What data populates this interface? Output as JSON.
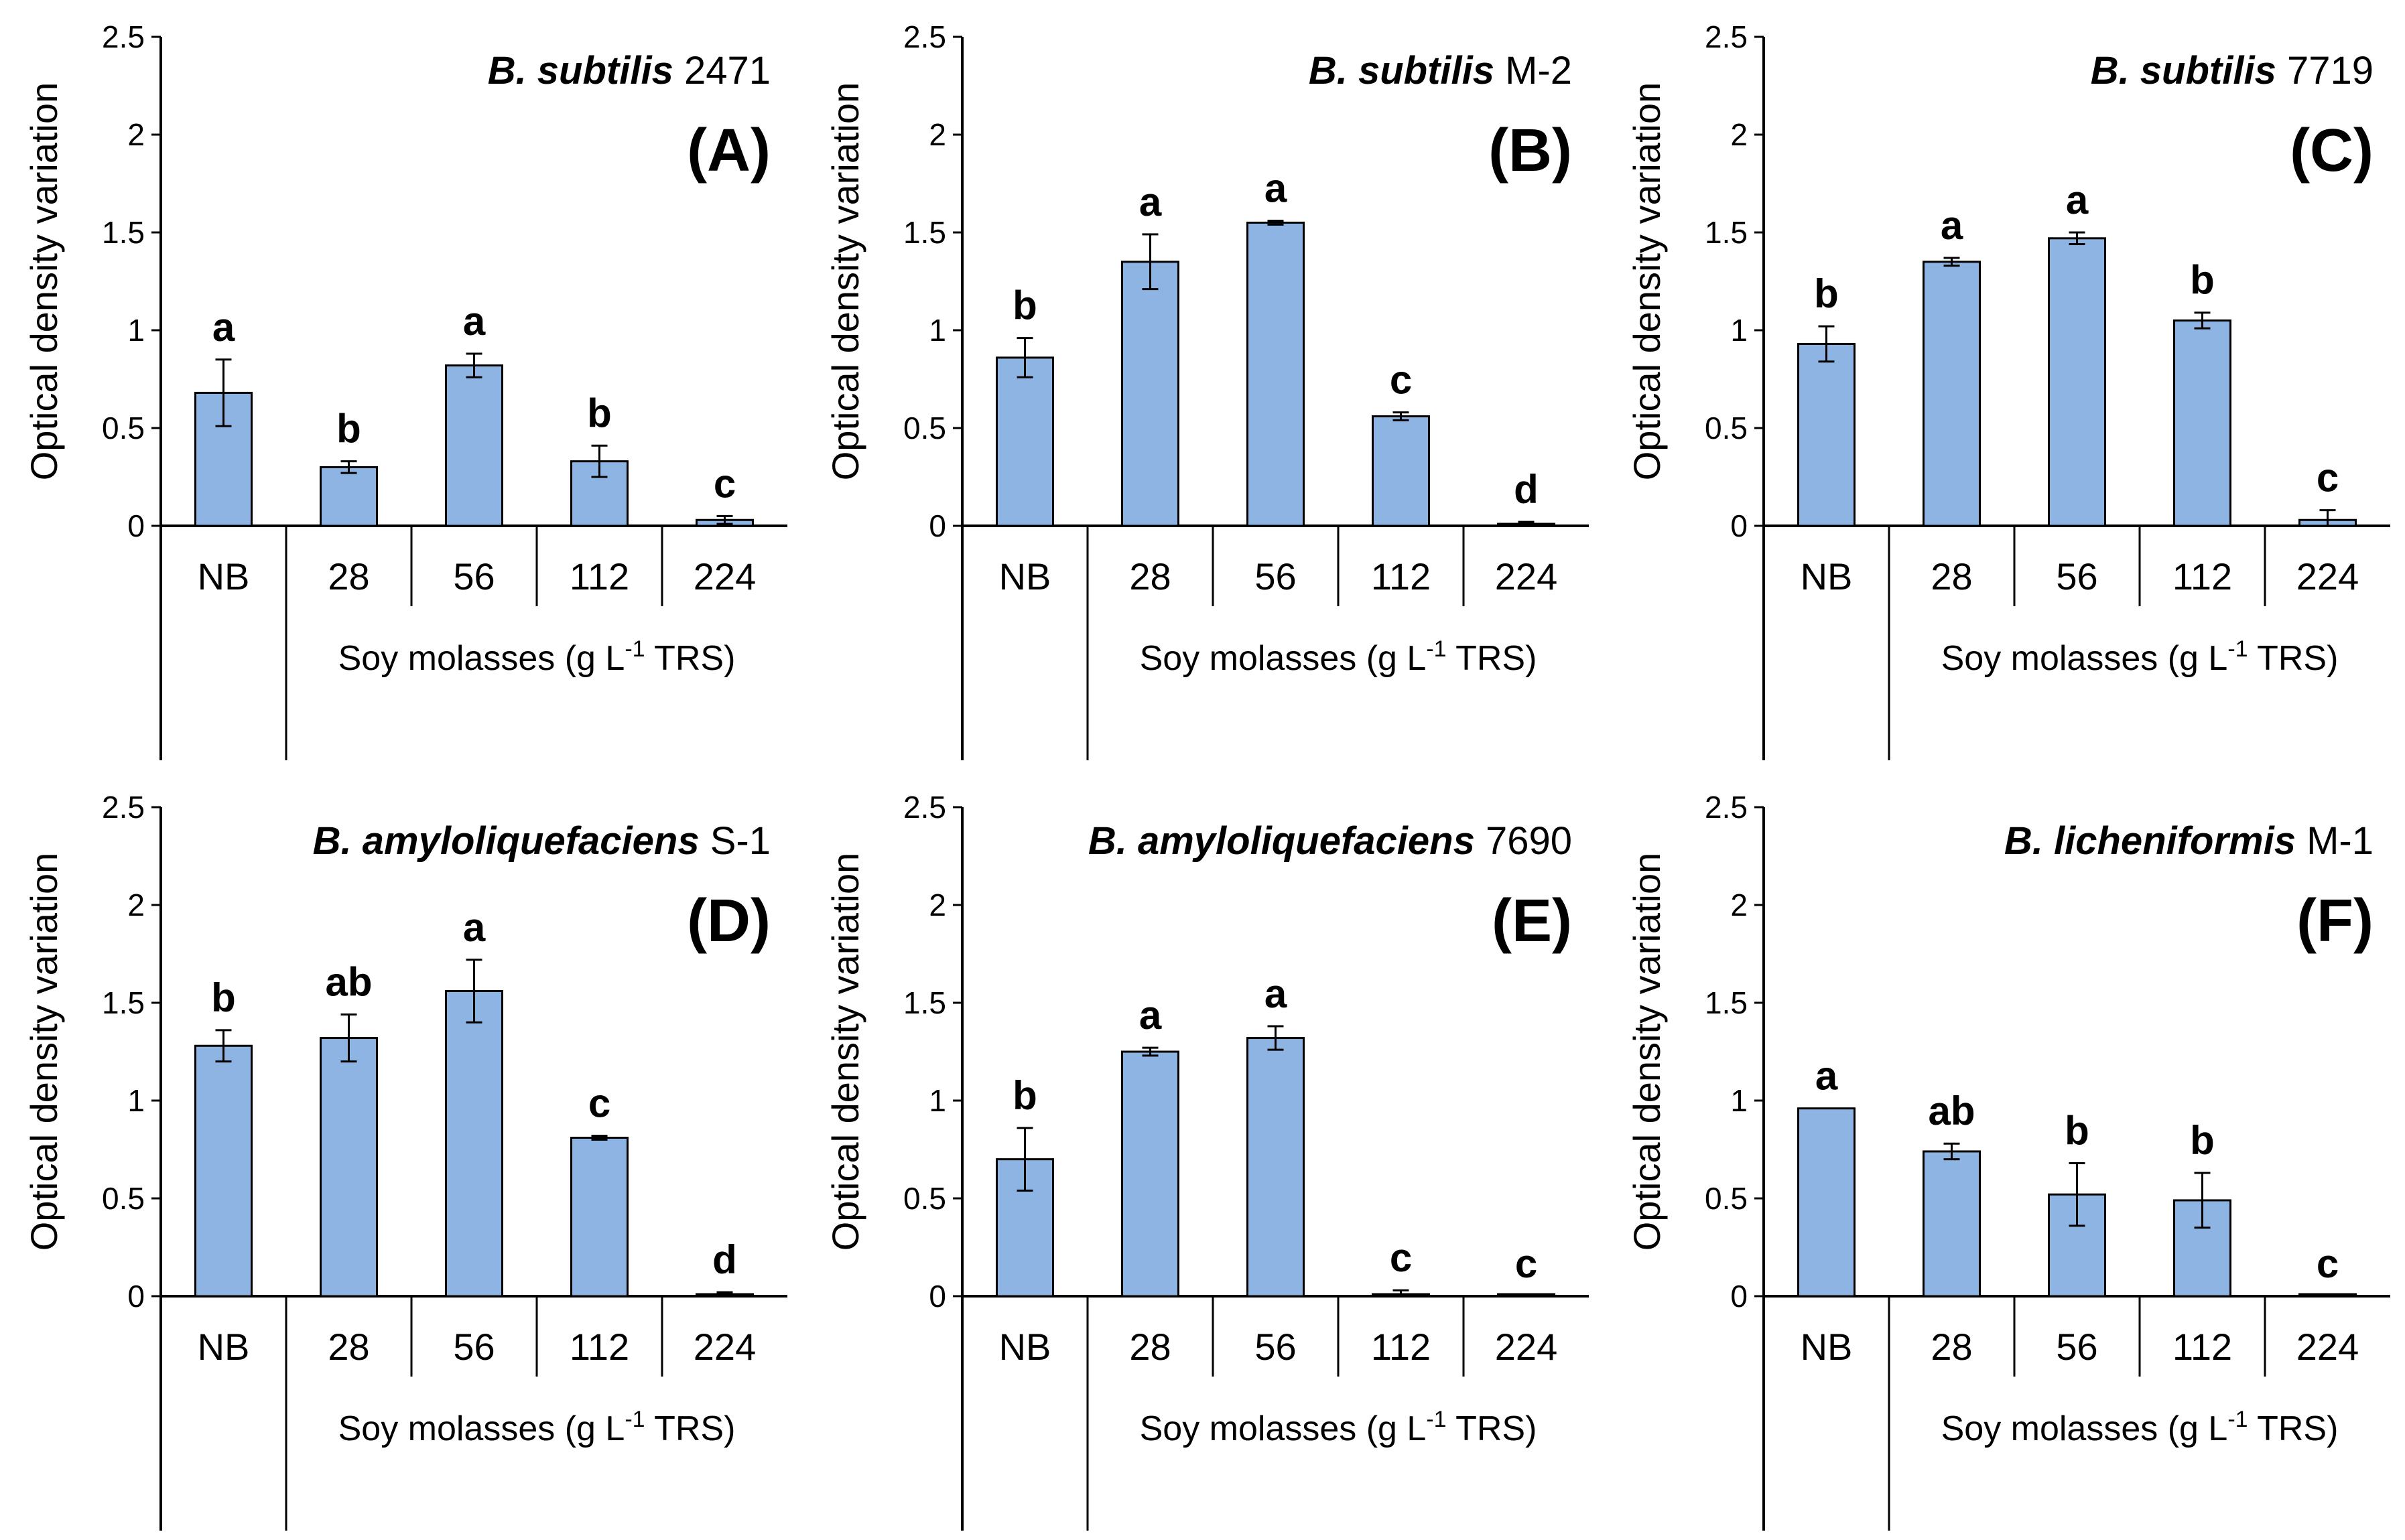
{
  "figure": {
    "colors": {
      "bar_fill": "#8db4e2",
      "bar_stroke": "#000000",
      "axis": "#000000",
      "background": "#ffffff"
    },
    "shared": {
      "ylabel": "Optical density variation",
      "xlabel_pre": "Soy molasses (g L",
      "xlabel_sup": "-1",
      "xlabel_post": " TRS)",
      "categories": [
        "NB",
        "28",
        "56",
        "112",
        "224"
      ],
      "ylim": [
        0,
        2.5
      ],
      "yticks": [
        "0",
        "0.5",
        "1",
        "1.5",
        "2",
        "2.5"
      ]
    }
  },
  "chart_data": [
    {
      "type": "bar",
      "panel_label": "(A)",
      "strain_species": "B. subtilis",
      "strain_id": "2471",
      "categories": [
        "NB",
        "28",
        "56",
        "112",
        "224"
      ],
      "values": [
        0.68,
        0.3,
        0.82,
        0.33,
        0.03
      ],
      "errors": [
        0.17,
        0.03,
        0.06,
        0.08,
        0.02
      ],
      "letters": [
        "a",
        "b",
        "a",
        "b",
        "c"
      ],
      "ylabel": "Optical density variation",
      "xlabel": "Soy molasses (g L-1 TRS)",
      "ylim": [
        0,
        2.5
      ]
    },
    {
      "type": "bar",
      "panel_label": "(B)",
      "strain_species": "B. subtilis",
      "strain_id": "M-2",
      "categories": [
        "NB",
        "28",
        "56",
        "112",
        "224"
      ],
      "values": [
        0.86,
        1.35,
        1.55,
        0.56,
        0.01
      ],
      "errors": [
        0.1,
        0.14,
        0.01,
        0.02,
        0.01
      ],
      "letters": [
        "b",
        "a",
        "a",
        "c",
        "d"
      ],
      "ylabel": "Optical density variation",
      "xlabel": "Soy molasses (g L-1 TRS)",
      "ylim": [
        0,
        2.5
      ]
    },
    {
      "type": "bar",
      "panel_label": "(C)",
      "strain_species": "B. subtilis",
      "strain_id": "7719",
      "categories": [
        "NB",
        "28",
        "56",
        "112",
        "224"
      ],
      "values": [
        0.93,
        1.35,
        1.47,
        1.05,
        0.03
      ],
      "errors": [
        0.09,
        0.02,
        0.03,
        0.04,
        0.05
      ],
      "letters": [
        "b",
        "a",
        "a",
        "b",
        "c"
      ],
      "ylabel": "Optical density variation",
      "xlabel": "Soy molasses (g L-1 TRS)",
      "ylim": [
        0,
        2.5
      ]
    },
    {
      "type": "bar",
      "panel_label": "(D)",
      "strain_species": "B. amyloliquefaciens",
      "strain_id": "S-1",
      "categories": [
        "NB",
        "28",
        "56",
        "112",
        "224"
      ],
      "values": [
        1.28,
        1.32,
        1.56,
        0.81,
        0.01
      ],
      "errors": [
        0.08,
        0.12,
        0.16,
        0.01,
        0.01
      ],
      "letters": [
        "b",
        "ab",
        "a",
        "c",
        "d"
      ],
      "ylabel": "Optical density variation",
      "xlabel": "Soy molasses (g L-1 TRS)",
      "ylim": [
        0,
        2.5
      ]
    },
    {
      "type": "bar",
      "panel_label": "(E)",
      "strain_species": "B. amyloliquefaciens",
      "strain_id": "7690",
      "categories": [
        "NB",
        "28",
        "56",
        "112",
        "224"
      ],
      "values": [
        0.7,
        1.25,
        1.32,
        0.01,
        0.0
      ],
      "errors": [
        0.16,
        0.02,
        0.06,
        0.02,
        0.0
      ],
      "letters": [
        "b",
        "a",
        "a",
        "c",
        "c"
      ],
      "ylabel": "Optical density variation",
      "xlabel": "Soy molasses (g L-1 TRS)",
      "ylim": [
        0,
        2.5
      ]
    },
    {
      "type": "bar",
      "panel_label": "(F)",
      "strain_species": "B. licheniformis",
      "strain_id": "M-1",
      "categories": [
        "NB",
        "28",
        "56",
        "112",
        "224"
      ],
      "values": [
        0.96,
        0.74,
        0.52,
        0.49,
        0.0
      ],
      "errors": [
        0.0,
        0.04,
        0.16,
        0.14,
        0.0
      ],
      "letters": [
        "a",
        "ab",
        "b",
        "b",
        "c"
      ],
      "ylabel": "Optical density variation",
      "xlabel": "Soy molasses (g L-1 TRS)",
      "ylim": [
        0,
        2.5
      ]
    }
  ]
}
